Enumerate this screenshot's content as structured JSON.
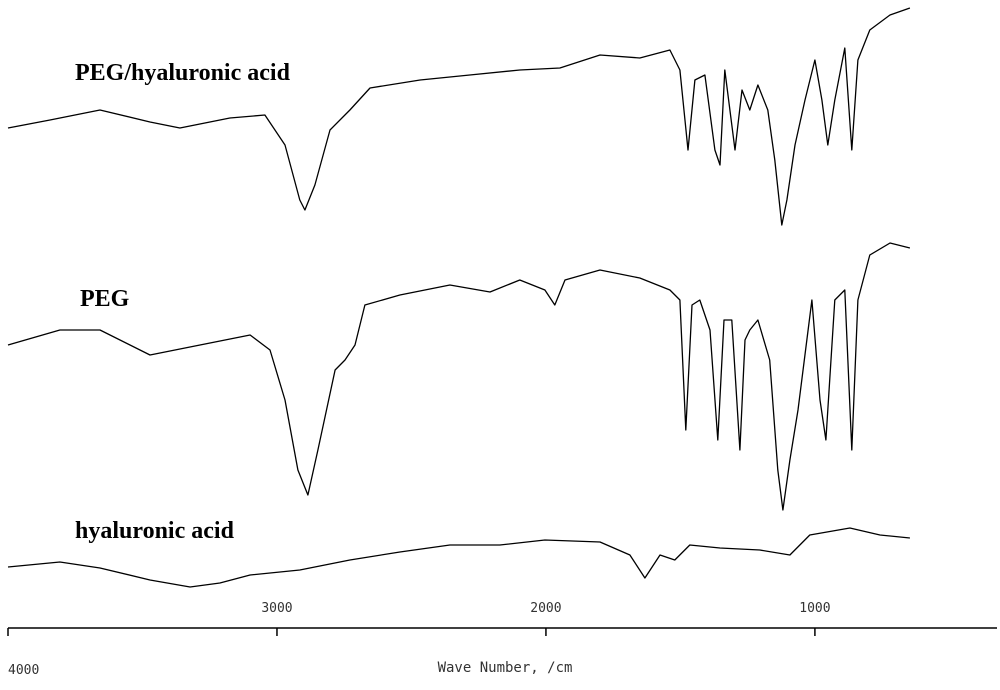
{
  "chart_data": {
    "type": "line",
    "x_label": "Wave Number, /cm",
    "xlim": [
      4000,
      323
    ],
    "ylim": [
      0,
      630
    ],
    "xticks": [
      4000,
      3000,
      2000,
      1000
    ],
    "series": [
      {
        "name": "PEG/hyaluronic acid",
        "color": "#000000",
        "x": [
          4000,
          3844,
          3658,
          3472,
          3361,
          3175,
          3045,
          2970,
          2915,
          2896,
          2859,
          2803,
          2729,
          2654,
          2468,
          2283,
          2097,
          1948,
          1799,
          1651,
          1539,
          1502,
          1472,
          1446,
          1409,
          1372,
          1353,
          1335,
          1297,
          1271,
          1242,
          1212,
          1175,
          1149,
          1123,
          1104,
          1074,
          1037,
          1000,
          974,
          952,
          926,
          889,
          863,
          840,
          796,
          721,
          647
        ],
        "values": [
          502,
          510,
          520,
          508,
          502,
          512,
          515,
          485,
          430,
          420,
          445,
          500,
          520,
          542,
          550,
          555,
          560,
          562,
          575,
          572,
          580,
          560,
          480,
          550,
          555,
          480,
          465,
          560,
          480,
          540,
          520,
          545,
          520,
          470,
          405,
          430,
          485,
          530,
          570,
          530,
          485,
          530,
          582,
          480,
          570,
          600,
          615,
          622
        ]
      },
      {
        "name": "PEG",
        "color": "#000000",
        "x": [
          4000,
          3807,
          3658,
          3472,
          3286,
          3100,
          3026,
          2970,
          2922,
          2885,
          2848,
          2784,
          2747,
          2710,
          2673,
          2543,
          2357,
          2208,
          2097,
          2004,
          1967,
          1929,
          1799,
          1651,
          1539,
          1502,
          1480,
          1457,
          1428,
          1390,
          1361,
          1338,
          1309,
          1279,
          1260,
          1242,
          1212,
          1168,
          1138,
          1119,
          1093,
          1063,
          1011,
          981,
          959,
          926,
          889,
          863,
          840,
          796,
          721,
          647
        ],
        "values": [
          285,
          300,
          300,
          275,
          285,
          295,
          280,
          230,
          160,
          135,
          180,
          260,
          270,
          285,
          325,
          335,
          345,
          338,
          350,
          340,
          325,
          350,
          360,
          352,
          340,
          330,
          200,
          325,
          330,
          300,
          190,
          310,
          310,
          180,
          290,
          300,
          310,
          270,
          160,
          120,
          170,
          220,
          330,
          230,
          190,
          330,
          340,
          180,
          330,
          375,
          387,
          382
        ]
      },
      {
        "name": "hyaluronic acid",
        "color": "#000000",
        "x": [
          4000,
          3807,
          3658,
          3472,
          3323,
          3212,
          3100,
          2915,
          2729,
          2543,
          2357,
          2171,
          2004,
          1799,
          1688,
          1632,
          1576,
          1521,
          1465,
          1353,
          1205,
          1093,
          1019,
          870,
          758,
          647
        ],
        "values": [
          63,
          68,
          62,
          50,
          43,
          47,
          55,
          60,
          70,
          78,
          85,
          85,
          90,
          88,
          75,
          52,
          75,
          70,
          85,
          82,
          80,
          75,
          95,
          102,
          95,
          92
        ]
      }
    ]
  }
}
